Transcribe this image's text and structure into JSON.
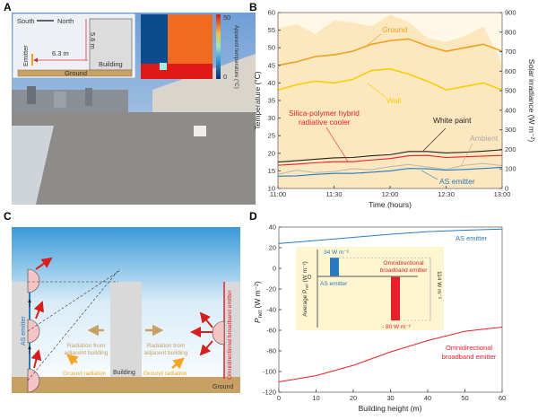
{
  "panels": {
    "a": "A",
    "b": "B",
    "c": "C",
    "d": "D"
  },
  "panel_a": {
    "schematic": {
      "south": "South",
      "north": "North",
      "distance": "6.3 m",
      "height": "5.6 m",
      "emitter": "Emitter",
      "building": "Building",
      "ground": "Ground"
    },
    "thermal": {
      "colorbar_max": "50",
      "colorbar_min": "0",
      "colorbar_label": "Apparent temperature (°C)"
    }
  },
  "panel_c": {
    "as_emitter": "AS emitter",
    "omni_emitter": "Omnidirectional broadband emitter",
    "radiation_building_left": [
      "Radiation from",
      "adjacent building"
    ],
    "radiation_building_right": [
      "Radiation from",
      "adjacent building"
    ],
    "ground_radiation_left": "Ground radiation",
    "ground_radiation_right": "Ground radiation",
    "building": "Building",
    "ground": "Ground"
  },
  "chart_data": [
    {
      "type": "line",
      "panel": "B",
      "xlabel": "Time (hours)",
      "ylabel": "Temperature (°C)",
      "y2label": "Solar irradiance (W m⁻²)",
      "xticks": [
        "11:00",
        "11:30",
        "12:00",
        "12:30",
        "13:00"
      ],
      "x": [
        "11:00",
        "11:10",
        "11:20",
        "11:30",
        "11:40",
        "11:50",
        "12:00",
        "12:10",
        "12:20",
        "12:30",
        "12:40",
        "12:50",
        "13:00"
      ],
      "ylim": [
        10,
        60
      ],
      "yticks": [
        10,
        15,
        20,
        25,
        30,
        35,
        40,
        45,
        50,
        55,
        60
      ],
      "y2lim": [
        0,
        900
      ],
      "y2ticks": [
        0,
        100,
        200,
        300,
        400,
        500,
        600,
        700,
        800,
        900
      ],
      "colors": {
        "solar": "#fde7bf",
        "Ground": "#f0a020",
        "Wall": "#f5d000",
        "White paint": "#222222",
        "Silica-polymer hybrid radiative cooler": "#e8202a",
        "Ambient": "#bbbbbb",
        "AS emitter": "#2a7ac0"
      },
      "solar_irradiance": [
        820,
        840,
        790,
        860,
        850,
        830,
        890,
        850,
        770,
        750,
        780,
        830,
        640
      ],
      "series": [
        {
          "name": "Ground",
          "values": [
            45,
            46,
            47.5,
            48,
            49,
            51,
            52,
            52.5,
            50.5,
            49,
            50,
            51,
            49
          ]
        },
        {
          "name": "Wall",
          "values": [
            38,
            39.5,
            40.5,
            40,
            41,
            43.5,
            44,
            42.5,
            40.5,
            38,
            39,
            40,
            38
          ]
        },
        {
          "name": "White paint",
          "values": [
            17.5,
            17.9,
            18.3,
            18.7,
            18.8,
            19.3,
            19.6,
            20.5,
            20.5,
            20.1,
            20.3,
            20.6,
            21
          ]
        },
        {
          "name": "Silica-polymer hybrid radiative cooler",
          "values": [
            16.6,
            16.9,
            17.3,
            17.6,
            17.6,
            18.1,
            18.5,
            19.3,
            19.4,
            18.8,
            19,
            19.2,
            19.4
          ]
        },
        {
          "name": "Ambient",
          "values": [
            14,
            15.2,
            14.5,
            14.8,
            15.6,
            15.3,
            16.2,
            16.8,
            16.1,
            15.4,
            16.6,
            17.1,
            16.5
          ]
        },
        {
          "name": "AS emitter",
          "values": [
            13.5,
            13.6,
            14,
            14.3,
            14.3,
            14.6,
            15,
            15.7,
            15.6,
            15.2,
            15.4,
            15.7,
            16
          ]
        }
      ],
      "annotations": [
        "Ground",
        "Wall",
        "Silica-polymer hybrid",
        "radiative cooler",
        "White paint",
        "Ambient",
        "AS emitter"
      ]
    },
    {
      "type": "line",
      "panel": "D",
      "xlabel": "Building height (m)",
      "ylabel_main": "P",
      "ylabel_sub": "net",
      "ylabel_unit": " (W m⁻²)",
      "xlim": [
        0,
        60
      ],
      "xticks": [
        0,
        10,
        20,
        30,
        40,
        50,
        60
      ],
      "ylim": [
        -120,
        40
      ],
      "yticks": [
        -120,
        -100,
        -80,
        -60,
        -40,
        -20,
        0,
        20,
        40
      ],
      "x": [
        0,
        10,
        20,
        30,
        40,
        50,
        60
      ],
      "colors": {
        "AS emitter": "#2a7ac0",
        "Omnidirectional broadband emitter": "#e8202a",
        "inset_bg": "#fdf6d0"
      },
      "series": [
        {
          "name": "AS emitter",
          "values": [
            24,
            27,
            30,
            33,
            35.5,
            37,
            38
          ]
        },
        {
          "name": "Omnidirectional broadband emitter",
          "values": [
            -110,
            -104,
            -94,
            -81,
            -70,
            -61,
            -57
          ]
        }
      ],
      "labels": {
        "as": "AS emitter",
        "omni": [
          "Omnidirectional",
          "broadband emitter"
        ]
      },
      "inset": {
        "type": "bar",
        "ylabel": "Average P",
        "ylabel_sub": "net",
        "ylabel_unit": " (W m⁻²)",
        "zero": "0",
        "categories": [
          "AS emitter",
          "Omnidirectional broadband emitter"
        ],
        "values": [
          34,
          -80
        ],
        "value_labels": [
          "34 W m⁻²",
          "- 80 W m⁻²"
        ],
        "difference_label": "114 W m⁻²",
        "omni_label": [
          "Omnidirectional",
          "broadband emitter"
        ]
      }
    }
  ]
}
